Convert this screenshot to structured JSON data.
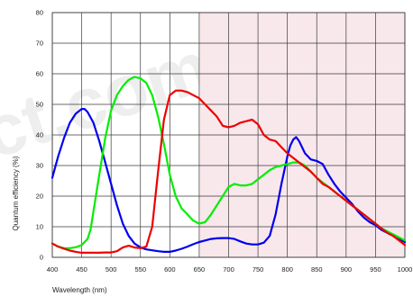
{
  "chart_data": {
    "type": "line",
    "title": "",
    "xlabel": "Wavelength (nm)",
    "ylabel": "Quantum efficiency (%)",
    "xlim": [
      400,
      1000
    ],
    "ylim": [
      0,
      80
    ],
    "x_ticks": [
      400,
      450,
      500,
      550,
      600,
      650,
      700,
      750,
      800,
      850,
      900,
      950,
      1000
    ],
    "y_ticks": [
      0,
      10,
      20,
      30,
      40,
      50,
      60,
      70,
      80
    ],
    "grid": true,
    "legend": "none",
    "shaded_region": {
      "x_from": 650,
      "x_to": 1000,
      "color": "#f8e8ec"
    },
    "series": [
      {
        "color": "#0000ee",
        "x": [
          400,
          410,
          420,
          430,
          440,
          450,
          455,
          460,
          470,
          480,
          490,
          500,
          510,
          520,
          530,
          540,
          550,
          560,
          570,
          580,
          590,
          600,
          610,
          620,
          630,
          640,
          650,
          660,
          670,
          680,
          690,
          700,
          710,
          720,
          730,
          740,
          750,
          760,
          770,
          780,
          790,
          800,
          805,
          810,
          815,
          820,
          830,
          840,
          850,
          860,
          870,
          880,
          890,
          900,
          910,
          920,
          930,
          940,
          950,
          960,
          970,
          980,
          990,
          1000
        ],
        "y": [
          26,
          33,
          39,
          44,
          47,
          48.5,
          48.5,
          47.5,
          44,
          38,
          31,
          24,
          17,
          11,
          7,
          4.5,
          3.2,
          2.6,
          2.3,
          2.0,
          1.8,
          1.8,
          2.2,
          2.8,
          3.5,
          4.3,
          5.0,
          5.5,
          6.0,
          6.2,
          6.3,
          6.3,
          6.0,
          5.2,
          4.5,
          4.2,
          4.2,
          4.8,
          7.0,
          14,
          24,
          33,
          36.5,
          38.5,
          39.3,
          38,
          34,
          32,
          31.5,
          30.5,
          27,
          24,
          21.5,
          19.5,
          17.5,
          15,
          13,
          11.5,
          10.5,
          9,
          8,
          7,
          6,
          5
        ]
      },
      {
        "color": "#00ee00",
        "x": [
          400,
          410,
          420,
          430,
          440,
          450,
          460,
          465,
          470,
          480,
          490,
          500,
          510,
          520,
          530,
          540,
          550,
          560,
          570,
          580,
          590,
          600,
          610,
          620,
          630,
          640,
          650,
          660,
          670,
          680,
          690,
          700,
          710,
          720,
          730,
          740,
          750,
          760,
          770,
          780,
          790,
          800,
          810,
          820,
          830,
          840,
          850,
          860,
          870,
          880,
          890,
          900,
          910,
          920,
          930,
          940,
          950,
          960,
          970,
          980,
          990,
          1000
        ],
        "y": [
          4.5,
          3.5,
          3.0,
          3.0,
          3.3,
          4.0,
          6.0,
          9.0,
          15,
          27,
          39,
          48,
          53,
          56,
          58,
          59,
          58.5,
          57,
          53,
          46,
          37,
          27,
          20,
          16,
          14,
          12,
          11,
          11.5,
          14,
          17,
          20,
          23,
          24,
          23.5,
          23.5,
          24,
          25.5,
          27,
          28.5,
          29.5,
          30,
          30.5,
          31,
          31,
          30,
          28,
          26,
          24.5,
          23,
          21.5,
          20,
          18.5,
          17,
          15.5,
          14,
          12.5,
          11,
          9.5,
          8.5,
          7.5,
          6.5,
          5.5
        ]
      },
      {
        "color": "#ee0000",
        "x": [
          400,
          410,
          420,
          430,
          440,
          450,
          460,
          470,
          480,
          490,
          500,
          510,
          520,
          530,
          540,
          550,
          560,
          570,
          580,
          590,
          600,
          610,
          620,
          630,
          640,
          650,
          660,
          670,
          680,
          690,
          700,
          710,
          720,
          730,
          740,
          750,
          760,
          770,
          780,
          790,
          800,
          810,
          820,
          830,
          840,
          850,
          860,
          870,
          880,
          890,
          900,
          910,
          920,
          930,
          940,
          950,
          960,
          970,
          980,
          990,
          1000
        ],
        "y": [
          4.5,
          3.5,
          2.8,
          2.2,
          1.8,
          1.5,
          1.5,
          1.5,
          1.5,
          1.6,
          1.6,
          2.0,
          3.2,
          3.8,
          3.2,
          3.0,
          3.5,
          10,
          28,
          45,
          53,
          54.5,
          54.5,
          54,
          53,
          52,
          50,
          48,
          46,
          43,
          42.5,
          43,
          44,
          44.5,
          45,
          43.5,
          40,
          38.5,
          38,
          36,
          34,
          32.5,
          31,
          29.5,
          28,
          26,
          24,
          23,
          21.5,
          20,
          18.5,
          17,
          15.5,
          14,
          12.5,
          11,
          9.5,
          8,
          7,
          5.5,
          4.0
        ]
      }
    ]
  }
}
